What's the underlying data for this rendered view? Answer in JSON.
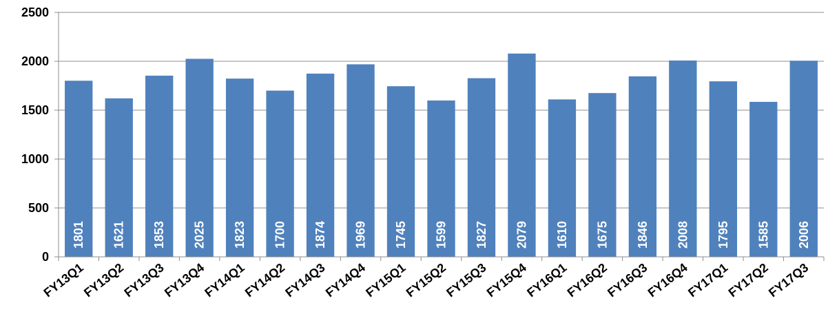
{
  "chart_data": {
    "type": "bar",
    "categories": [
      "FY13Q1",
      "FY13Q2",
      "FY13Q3",
      "FY13Q4",
      "FY14Q1",
      "FY14Q2",
      "FY14Q3",
      "FY14Q4",
      "FY15Q1",
      "FY15Q2",
      "FY15Q3",
      "FY15Q4",
      "FY16Q1",
      "FY16Q2",
      "FY16Q3",
      "FY16Q4",
      "FY17Q1",
      "FY17Q2",
      "FY17Q3"
    ],
    "values": [
      1801,
      1621,
      1853,
      2025,
      1823,
      1700,
      1874,
      1969,
      1745,
      1599,
      1827,
      2079,
      1610,
      1675,
      1846,
      2008,
      1795,
      1585,
      2006
    ],
    "title": "",
    "xlabel": "",
    "ylabel": "",
    "ylim": [
      0,
      2500
    ],
    "yticks": [
      0,
      500,
      1000,
      1500,
      2000,
      2500
    ],
    "grid": true,
    "legend": "none",
    "bar_color": "#4f81bd",
    "gridline_color": "#8c8c8c",
    "data_label_color": "#ffffff"
  }
}
